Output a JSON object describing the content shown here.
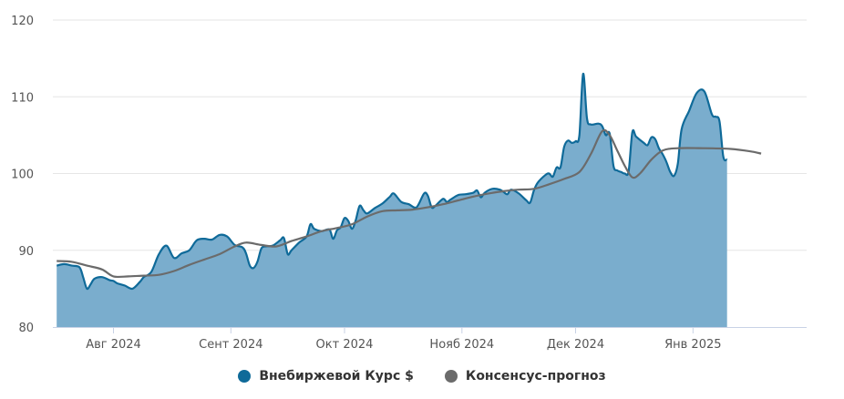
{
  "chart_data": {
    "type": "area",
    "title": "",
    "xlabel": "",
    "ylabel": "",
    "ylim": [
      80,
      120
    ],
    "yticks": [
      80,
      90,
      100,
      110,
      120
    ],
    "xlim": [
      "2024-07-16",
      "2025-01-31"
    ],
    "xticks": [
      {
        "date": "2024-08-01",
        "label": "Авг 2024"
      },
      {
        "date": "2024-09-01",
        "label": "Сент 2024"
      },
      {
        "date": "2024-10-01",
        "label": "Окт 2024"
      },
      {
        "date": "2024-11-01",
        "label": "Нояб 2024"
      },
      {
        "date": "2024-12-01",
        "label": "Дек 2024"
      },
      {
        "date": "2025-01-01",
        "label": "Янв 2025"
      }
    ],
    "grid": true,
    "legend_position": "bottom",
    "series": [
      {
        "name": "Внебиржевой Курс $",
        "type": "area",
        "color": "#0f6a99",
        "fill": "#7aadcd",
        "points": [
          [
            "2024-07-17",
            88.0
          ],
          [
            "2024-07-19",
            88.2
          ],
          [
            "2024-07-21",
            88.0
          ],
          [
            "2024-07-23",
            87.8
          ],
          [
            "2024-07-24",
            86.5
          ],
          [
            "2024-07-25",
            85.0
          ],
          [
            "2024-07-26",
            85.6
          ],
          [
            "2024-07-27",
            86.3
          ],
          [
            "2024-07-29",
            86.5
          ],
          [
            "2024-07-31",
            86.1
          ],
          [
            "2024-08-01",
            86.0
          ],
          [
            "2024-08-02",
            85.7
          ],
          [
            "2024-08-04",
            85.4
          ],
          [
            "2024-08-06",
            85.0
          ],
          [
            "2024-08-08",
            85.9
          ],
          [
            "2024-08-09",
            86.5
          ],
          [
            "2024-08-11",
            87.2
          ],
          [
            "2024-08-13",
            89.5
          ],
          [
            "2024-08-15",
            90.6
          ],
          [
            "2024-08-17",
            89.0
          ],
          [
            "2024-08-19",
            89.6
          ],
          [
            "2024-08-21",
            90.0
          ],
          [
            "2024-08-23",
            91.3
          ],
          [
            "2024-08-25",
            91.5
          ],
          [
            "2024-08-27",
            91.4
          ],
          [
            "2024-08-29",
            92.0
          ],
          [
            "2024-08-31",
            91.8
          ],
          [
            "2024-09-02",
            90.7
          ],
          [
            "2024-09-04",
            90.4
          ],
          [
            "2024-09-05",
            89.6
          ],
          [
            "2024-09-06",
            88.0
          ],
          [
            "2024-09-07",
            87.7
          ],
          [
            "2024-09-08",
            88.5
          ],
          [
            "2024-09-09",
            90.2
          ],
          [
            "2024-09-10",
            90.5
          ],
          [
            "2024-09-12",
            90.6
          ],
          [
            "2024-09-14",
            91.3
          ],
          [
            "2024-09-15",
            91.6
          ],
          [
            "2024-09-16",
            89.5
          ],
          [
            "2024-09-17",
            90.0
          ],
          [
            "2024-09-19",
            91.0
          ],
          [
            "2024-09-21",
            91.8
          ],
          [
            "2024-09-22",
            93.4
          ],
          [
            "2024-09-23",
            92.8
          ],
          [
            "2024-09-25",
            92.5
          ],
          [
            "2024-09-27",
            92.7
          ],
          [
            "2024-09-28",
            91.5
          ],
          [
            "2024-09-29",
            92.6
          ],
          [
            "2024-09-30",
            93.0
          ],
          [
            "2024-10-01",
            94.2
          ],
          [
            "2024-10-02",
            93.8
          ],
          [
            "2024-10-03",
            92.8
          ],
          [
            "2024-10-04",
            94.0
          ],
          [
            "2024-10-05",
            95.8
          ],
          [
            "2024-10-06",
            95.2
          ],
          [
            "2024-10-07",
            94.8
          ],
          [
            "2024-10-09",
            95.5
          ],
          [
            "2024-10-11",
            96.1
          ],
          [
            "2024-10-13",
            97.0
          ],
          [
            "2024-10-14",
            97.4
          ],
          [
            "2024-10-16",
            96.3
          ],
          [
            "2024-10-18",
            96.0
          ],
          [
            "2024-10-20",
            95.6
          ],
          [
            "2024-10-22",
            97.4
          ],
          [
            "2024-10-23",
            97.1
          ],
          [
            "2024-10-24",
            95.6
          ],
          [
            "2024-10-25",
            95.8
          ],
          [
            "2024-10-27",
            96.7
          ],
          [
            "2024-10-28",
            96.3
          ],
          [
            "2024-10-29",
            96.6
          ],
          [
            "2024-10-31",
            97.2
          ],
          [
            "2024-11-02",
            97.3
          ],
          [
            "2024-11-04",
            97.5
          ],
          [
            "2024-11-05",
            97.8
          ],
          [
            "2024-11-06",
            96.9
          ],
          [
            "2024-11-07",
            97.5
          ],
          [
            "2024-11-09",
            98.0
          ],
          [
            "2024-11-11",
            97.9
          ],
          [
            "2024-11-12",
            97.6
          ],
          [
            "2024-11-13",
            97.3
          ],
          [
            "2024-11-14",
            97.9
          ],
          [
            "2024-11-16",
            97.4
          ],
          [
            "2024-11-18",
            96.5
          ],
          [
            "2024-11-19",
            96.2
          ],
          [
            "2024-11-20",
            97.8
          ],
          [
            "2024-11-21",
            98.8
          ],
          [
            "2024-11-23",
            99.8
          ],
          [
            "2024-11-24",
            100.0
          ],
          [
            "2024-11-25",
            99.6
          ],
          [
            "2024-11-26",
            100.8
          ],
          [
            "2024-11-27",
            100.8
          ],
          [
            "2024-11-28",
            103.5
          ],
          [
            "2024-11-29",
            104.3
          ],
          [
            "2024-11-30",
            104.0
          ],
          [
            "2024-12-01",
            104.2
          ],
          [
            "2024-12-02",
            105.0
          ],
          [
            "2024-12-03",
            113.0
          ],
          [
            "2024-12-04",
            107.2
          ],
          [
            "2024-12-05",
            106.4
          ],
          [
            "2024-12-07",
            106.5
          ],
          [
            "2024-12-08",
            106.2
          ],
          [
            "2024-12-09",
            105.0
          ],
          [
            "2024-12-10",
            105.2
          ],
          [
            "2024-12-11",
            101.0
          ],
          [
            "2024-12-12",
            100.4
          ],
          [
            "2024-12-13",
            100.2
          ],
          [
            "2024-12-14",
            100.0
          ],
          [
            "2024-12-15",
            100.3
          ],
          [
            "2024-12-16",
            105.4
          ],
          [
            "2024-12-17",
            104.8
          ],
          [
            "2024-12-19",
            104.0
          ],
          [
            "2024-12-20",
            103.7
          ],
          [
            "2024-12-21",
            104.7
          ],
          [
            "2024-12-22",
            104.5
          ],
          [
            "2024-12-23",
            103.3
          ],
          [
            "2024-12-24",
            102.5
          ],
          [
            "2024-12-25",
            101.5
          ],
          [
            "2024-12-26",
            100.2
          ],
          [
            "2024-12-27",
            99.7
          ],
          [
            "2024-12-28",
            101.3
          ],
          [
            "2024-12-29",
            105.8
          ],
          [
            "2024-12-31",
            108.2
          ],
          [
            "2025-01-02",
            110.5
          ],
          [
            "2025-01-04",
            110.7
          ],
          [
            "2025-01-06",
            107.7
          ],
          [
            "2025-01-07",
            107.4
          ],
          [
            "2025-01-08",
            106.8
          ],
          [
            "2025-01-09",
            102.2
          ],
          [
            "2025-01-10",
            101.8
          ]
        ]
      },
      {
        "name": "Консенсус-прогноз",
        "type": "line",
        "color": "#6b6b6b",
        "points": [
          [
            "2024-07-17",
            88.6
          ],
          [
            "2024-07-21",
            88.5
          ],
          [
            "2024-07-25",
            88.0
          ],
          [
            "2024-07-29",
            87.5
          ],
          [
            "2024-08-01",
            86.6
          ],
          [
            "2024-08-05",
            86.6
          ],
          [
            "2024-08-09",
            86.7
          ],
          [
            "2024-08-13",
            86.8
          ],
          [
            "2024-08-17",
            87.3
          ],
          [
            "2024-08-21",
            88.1
          ],
          [
            "2024-08-25",
            88.8
          ],
          [
            "2024-08-29",
            89.5
          ],
          [
            "2024-09-02",
            90.5
          ],
          [
            "2024-09-05",
            91.0
          ],
          [
            "2024-09-09",
            90.7
          ],
          [
            "2024-09-13",
            90.5
          ],
          [
            "2024-09-17",
            91.2
          ],
          [
            "2024-09-21",
            91.8
          ],
          [
            "2024-09-25",
            92.5
          ],
          [
            "2024-09-29",
            92.9
          ],
          [
            "2024-10-03",
            93.4
          ],
          [
            "2024-10-07",
            94.4
          ],
          [
            "2024-10-11",
            95.1
          ],
          [
            "2024-10-15",
            95.2
          ],
          [
            "2024-10-19",
            95.3
          ],
          [
            "2024-10-23",
            95.6
          ],
          [
            "2024-10-27",
            96.0
          ],
          [
            "2024-10-31",
            96.5
          ],
          [
            "2024-11-04",
            97.0
          ],
          [
            "2024-11-08",
            97.4
          ],
          [
            "2024-11-12",
            97.7
          ],
          [
            "2024-11-16",
            97.9
          ],
          [
            "2024-11-20",
            98.0
          ],
          [
            "2024-11-24",
            98.6
          ],
          [
            "2024-11-28",
            99.3
          ],
          [
            "2024-12-02",
            100.2
          ],
          [
            "2024-12-05",
            102.5
          ],
          [
            "2024-12-08",
            105.5
          ],
          [
            "2024-12-10",
            105.0
          ],
          [
            "2024-12-12",
            103.0
          ],
          [
            "2024-12-14",
            101.0
          ],
          [
            "2024-12-16",
            99.5
          ],
          [
            "2024-12-18",
            100.0
          ],
          [
            "2024-12-21",
            101.8
          ],
          [
            "2024-12-24",
            103.0
          ],
          [
            "2024-12-28",
            103.3
          ],
          [
            "2025-01-04",
            103.3
          ],
          [
            "2025-01-11",
            103.2
          ],
          [
            "2025-01-16",
            102.9
          ],
          [
            "2025-01-19",
            102.6
          ]
        ]
      }
    ]
  }
}
